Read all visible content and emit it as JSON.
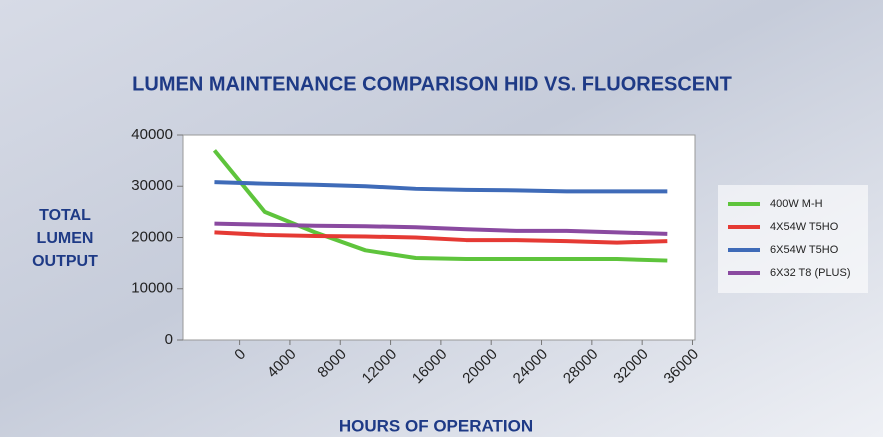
{
  "chart_data": {
    "type": "line",
    "title": "LUMEN MAINTENANCE COMPARISON HID VS. FLUORESCENT",
    "xlabel": "HOURS OF OPERATION",
    "ylabel": [
      "TOTAL",
      "LUMEN",
      "OUTPUT"
    ],
    "x": [
      -2000,
      2000,
      6000,
      10000,
      14000,
      18000,
      22000,
      26000,
      30000,
      34000
    ],
    "series": [
      {
        "name": "400W M-H",
        "color": "#5ec43c",
        "values": [
          37000,
          25000,
          21000,
          17500,
          16000,
          15800,
          15800,
          15800,
          15800,
          15500
        ]
      },
      {
        "name": "4X54W T5HO",
        "color": "#e53a34",
        "values": [
          21000,
          20500,
          20300,
          20200,
          20000,
          19500,
          19500,
          19300,
          19000,
          19300
        ]
      },
      {
        "name": "6X54W T5HO",
        "color": "#3f6bb8",
        "values": [
          30800,
          30500,
          30300,
          30000,
          29500,
          29300,
          29200,
          29000,
          29000,
          29000
        ]
      },
      {
        "name": "6X32 T8 (PLUS)",
        "color": "#8a4aa0",
        "values": [
          22700,
          22500,
          22300,
          22200,
          22000,
          21600,
          21300,
          21300,
          21000,
          20700
        ]
      }
    ],
    "xlim": [
      -4500,
      36200
    ],
    "xticks": [
      0,
      4000,
      8000,
      12000,
      16000,
      20000,
      24000,
      28000,
      32000,
      36000
    ],
    "ylim": [
      0,
      40000
    ],
    "yticks": [
      0,
      10000,
      20000,
      30000,
      40000
    ],
    "grid": false,
    "legend": "right"
  }
}
